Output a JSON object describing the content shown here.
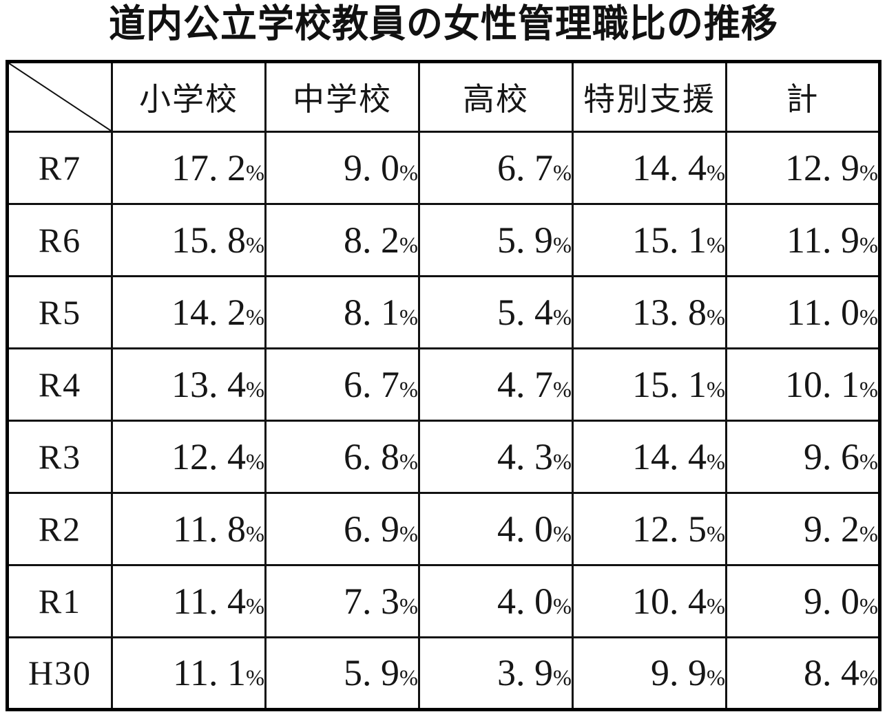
{
  "title": "道内公立学校教員の女性管理職比の推移",
  "table": {
    "corner_label": "",
    "unit_suffix": "%"
  },
  "chart_data": {
    "type": "table",
    "title": "道内公立学校教員の女性管理職比の推移",
    "columns": [
      "小学校",
      "中学校",
      "高校",
      "特別支援",
      "計"
    ],
    "row_labels": [
      "R7",
      "R6",
      "R5",
      "R4",
      "R3",
      "R2",
      "R1",
      "H30"
    ],
    "values_percent": [
      [
        17.2,
        9.0,
        6.7,
        14.4,
        12.9
      ],
      [
        15.8,
        8.2,
        5.9,
        15.1,
        11.9
      ],
      [
        14.2,
        8.1,
        5.4,
        13.8,
        11.0
      ],
      [
        13.4,
        6.7,
        4.7,
        15.1,
        10.1
      ],
      [
        12.4,
        6.8,
        4.3,
        14.4,
        9.6
      ],
      [
        11.8,
        6.9,
        4.0,
        12.5,
        9.2
      ],
      [
        11.4,
        7.3,
        4.0,
        10.4,
        9.0
      ],
      [
        11.1,
        5.9,
        3.9,
        9.9,
        8.4
      ]
    ],
    "unit": "%",
    "notes": "Decimal rendered with a space after the point, e.g. 17. 2%"
  }
}
